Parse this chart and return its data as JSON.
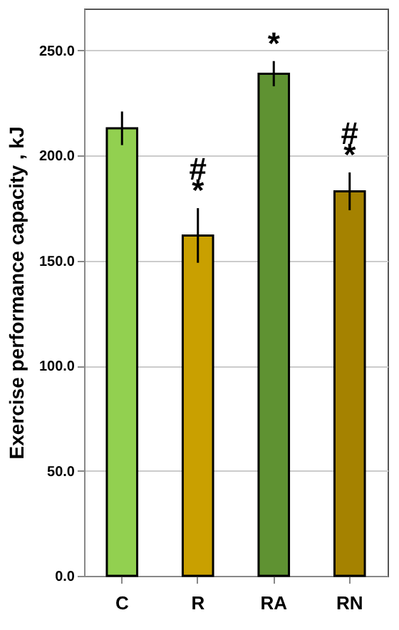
{
  "chart_data": {
    "type": "bar",
    "ylabel": "Exercise performance capacity , kJ",
    "categories": [
      "C",
      "R",
      "RA",
      "RN"
    ],
    "values": [
      213,
      162,
      239,
      183
    ],
    "colors": [
      "#92d050",
      "#c9a000",
      "#5f9232",
      "#a58200"
    ],
    "errors": [
      8,
      13,
      6,
      9
    ],
    "ylim": [
      0,
      270
    ],
    "yticks": [
      {
        "value": 0,
        "label": "0.0"
      },
      {
        "value": 50,
        "label": "50.0"
      },
      {
        "value": 100,
        "label": "100.0"
      },
      {
        "value": 150,
        "label": "150.0"
      },
      {
        "value": 200,
        "label": "200.0"
      },
      {
        "value": 250,
        "label": "250.0"
      }
    ],
    "grid": "y",
    "annotations": [
      {
        "text": "*",
        "x": "R",
        "y": 162
      },
      {
        "text": "#",
        "x": "R",
        "y": 162
      },
      {
        "text": "*",
        "x": "RA",
        "y": 239
      },
      {
        "text": "*",
        "x": "RN",
        "y": 183
      },
      {
        "text": "#",
        "x": "RN",
        "y": 183
      }
    ]
  }
}
